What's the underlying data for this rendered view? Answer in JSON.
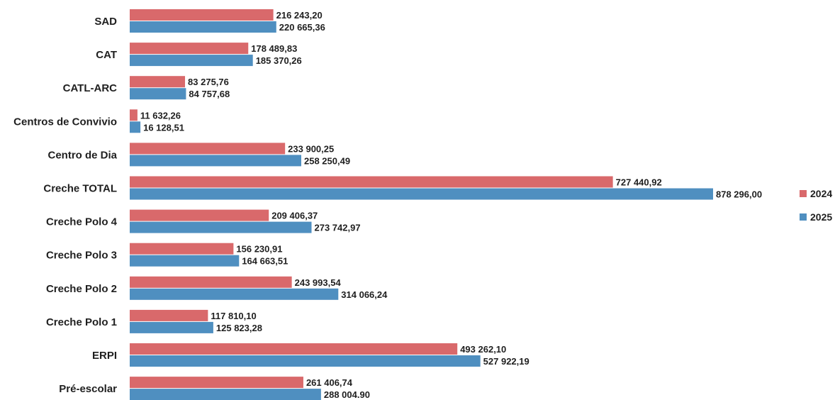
{
  "chart_data": {
    "type": "bar",
    "orientation": "horizontal",
    "categories": [
      "SAD",
      "CAT",
      "CATL-ARC",
      "Centros de Convivio",
      "Centro de Dia",
      "Creche TOTAL",
      "Creche Polo 4",
      "Creche Polo 3",
      "Creche Polo 2",
      "Creche Polo 1",
      "ERPI",
      "Pré-escolar"
    ],
    "series": [
      {
        "name": "2024",
        "color": "#d9696b",
        "values": [
          216243.2,
          178489.83,
          83275.76,
          11632.26,
          233900.25,
          727440.92,
          209406.37,
          156230.91,
          243993.54,
          117810.1,
          493262.1,
          261406.74
        ],
        "labels": [
          "216 243,20",
          "178 489,83",
          "83 275,76",
          "11 632,26",
          "233 900,25",
          "727 440,92",
          "209 406,37",
          "156 230,91",
          "243 993,54",
          "117 810,10",
          "493 262,10",
          "261 406,74"
        ]
      },
      {
        "name": "2025",
        "color": "#4f8fc0",
        "values": [
          220665.36,
          185370.26,
          84757.68,
          16128.51,
          258250.49,
          878296.0,
          273742.97,
          164663.51,
          314066.24,
          125823.28,
          527922.19,
          288004.9
        ],
        "labels": [
          "220 665,36",
          "185 370,26",
          "84 757,68",
          "16 128,51",
          "258 250,49",
          "878 296,00",
          "273 742,97",
          "164 663,51",
          "314 066,24",
          "125 823,28",
          "527 922,19",
          "288 004.90"
        ]
      }
    ],
    "legend_position": "right",
    "grid": false,
    "title": "",
    "xlabel": "",
    "ylabel": ""
  }
}
